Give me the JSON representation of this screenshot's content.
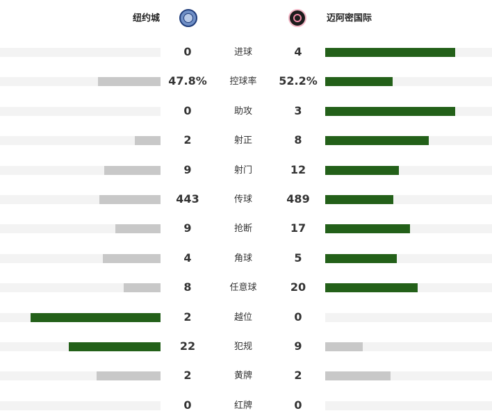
{
  "teams": {
    "home": {
      "name": "纽约城",
      "crest_icon": "nycfc-crest-icon"
    },
    "away": {
      "name": "迈阿密国际",
      "crest_icon": "inter-miami-crest-icon"
    }
  },
  "colors": {
    "leader": "#236019",
    "trailer": "#c8c8c8",
    "track": "#f3f3f3"
  },
  "stats": [
    {
      "label": "进球",
      "home": "0",
      "away": "4",
      "home_bar": 0,
      "away_bar": 0.78,
      "leader": "away"
    },
    {
      "label": "控球率",
      "home": "47.8%",
      "away": "52.2%",
      "home_bar": 0.39,
      "away_bar": 0.405,
      "leader": "away"
    },
    {
      "label": "助攻",
      "home": "0",
      "away": "3",
      "home_bar": 0,
      "away_bar": 0.78,
      "leader": "away"
    },
    {
      "label": "射正",
      "home": "2",
      "away": "8",
      "home_bar": 0.16,
      "away_bar": 0.62,
      "leader": "away"
    },
    {
      "label": "射门",
      "home": "9",
      "away": "12",
      "home_bar": 0.35,
      "away_bar": 0.44,
      "leader": "away"
    },
    {
      "label": "传球",
      "home": "443",
      "away": "489",
      "home_bar": 0.38,
      "away_bar": 0.41,
      "leader": "away"
    },
    {
      "label": "抢断",
      "home": "9",
      "away": "17",
      "home_bar": 0.28,
      "away_bar": 0.51,
      "leader": "away"
    },
    {
      "label": "角球",
      "home": "4",
      "away": "5",
      "home_bar": 0.36,
      "away_bar": 0.43,
      "leader": "away"
    },
    {
      "label": "任意球",
      "home": "8",
      "away": "20",
      "home_bar": 0.23,
      "away_bar": 0.555,
      "leader": "away"
    },
    {
      "label": "越位",
      "home": "2",
      "away": "0",
      "home_bar": 0.81,
      "away_bar": 0,
      "leader": "home"
    },
    {
      "label": "犯规",
      "home": "22",
      "away": "9",
      "home_bar": 0.57,
      "away_bar": 0.225,
      "leader": "home"
    },
    {
      "label": "黄牌",
      "home": "2",
      "away": "2",
      "home_bar": 0.4,
      "away_bar": 0.39,
      "leader": "none"
    },
    {
      "label": "红牌",
      "home": "0",
      "away": "0",
      "home_bar": 0,
      "away_bar": 0,
      "leader": "none"
    }
  ]
}
